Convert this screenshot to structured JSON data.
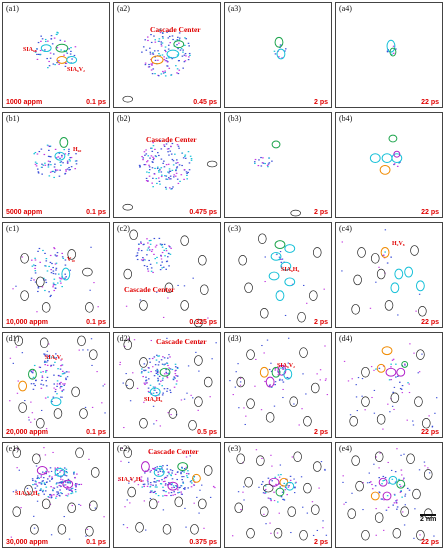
{
  "rows": [
    {
      "concentration": "1000 appm",
      "panels": [
        {
          "label": "(a1)",
          "time": "0.1 ps",
          "annotations": [
            "SIA₆₈",
            "SIA₆V₂"
          ]
        },
        {
          "label": "(a2)",
          "time": "0.45 ps",
          "annotations": [
            "Cascade Center"
          ]
        },
        {
          "label": "(a3)",
          "time": "2 ps",
          "annotations": []
        },
        {
          "label": "(a4)",
          "time": "22 ps",
          "annotations": []
        }
      ]
    },
    {
      "concentration": "5000 appm",
      "panels": [
        {
          "label": "(b1)",
          "time": "0.1 ps",
          "annotations": [
            "H₆₀"
          ]
        },
        {
          "label": "(b2)",
          "time": "0.475 ps",
          "annotations": [
            "Cascade Center"
          ]
        },
        {
          "label": "(b3)",
          "time": "2 ps",
          "annotations": []
        },
        {
          "label": "(b4)",
          "time": "22 ps",
          "annotations": []
        }
      ]
    },
    {
      "concentration": "10,000 appm",
      "panels": [
        {
          "label": "(c1)",
          "time": "0.1 ps",
          "annotations": [
            "V₁₀"
          ]
        },
        {
          "label": "(c2)",
          "time": "0.325 ps",
          "annotations": [
            "Cascade Center"
          ]
        },
        {
          "label": "(c3)",
          "time": "2 ps",
          "annotations": [
            "SIA₆H₆"
          ]
        },
        {
          "label": "(c4)",
          "time": "22 ps",
          "annotations": [
            "H₂V₈"
          ]
        }
      ]
    },
    {
      "concentration": "20,000 appm",
      "panels": [
        {
          "label": "(d1)",
          "time": "0.1 ps",
          "annotations": [
            "SIA₆V₁"
          ]
        },
        {
          "label": "(d2)",
          "time": "0.5 ps",
          "annotations": [
            "Cascade Center",
            "SIA₆H₆"
          ]
        },
        {
          "label": "(d3)",
          "time": "2 ps",
          "annotations": [
            "SIA₆V₂"
          ]
        },
        {
          "label": "(d4)",
          "time": "22 ps",
          "annotations": []
        }
      ]
    },
    {
      "concentration": "30,000 appm",
      "panels": [
        {
          "label": "(e1)",
          "time": "0.1 ps",
          "annotations": [
            "SIA₆V₆H₆"
          ]
        },
        {
          "label": "(e2)",
          "time": "0.375 ps",
          "annotations": [
            "Cascade Center",
            "SIA₆V₂H₆"
          ]
        },
        {
          "label": "(e3)",
          "time": "2 ps",
          "annotations": []
        },
        {
          "label": "(e4)",
          "time": "22 ps",
          "annotations": []
        }
      ]
    }
  ],
  "scale_bar": "2 nm",
  "colors": {
    "text_red": "#e00000",
    "green": "#1aa34a",
    "cyan": "#16c0d8",
    "orange": "#f08a00",
    "purple": "#b020c8",
    "black": "#222222",
    "blue_dot": "#3b4fd8",
    "magenta_dot": "#c238e0"
  }
}
